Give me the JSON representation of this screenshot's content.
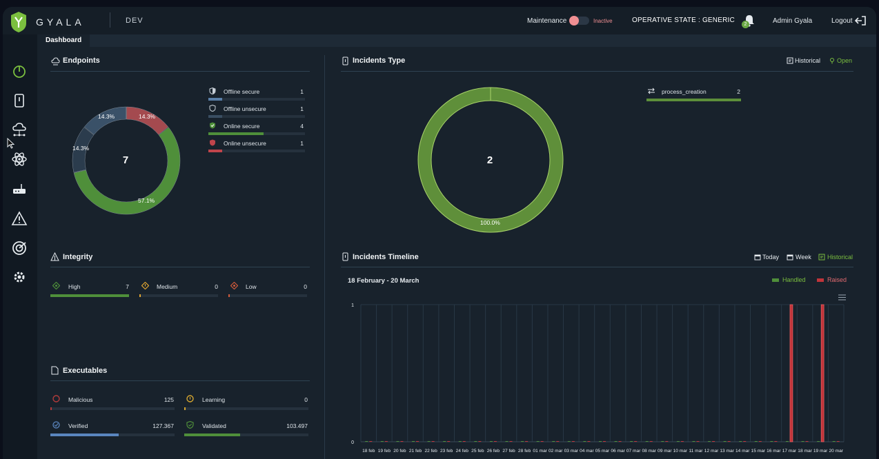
{
  "header": {
    "brand": "GYALA",
    "environment": "DEV",
    "maintenance_label": "Maintenance",
    "maintenance_state": "Inactive",
    "operative_state": "OPERATIVE STATE : GENERIC",
    "notification_count": "2",
    "user": "Admin Gyala",
    "logout_label": "Logout"
  },
  "tabs": [
    "Dashboard"
  ],
  "sidebar": {
    "items": [
      "dashboard-icon",
      "device-icon",
      "cloud-network-icon",
      "atom-icon",
      "router-icon",
      "alert-triangle-icon",
      "target-icon",
      "settings-cog-icon"
    ]
  },
  "endpoints": {
    "title": "Endpoints",
    "total": "7",
    "slices": [
      {
        "label": "Online secure",
        "pct": 57.1,
        "pct_label": "57.1%",
        "color": "#4f8f3a"
      },
      {
        "label": "Offline unsecure",
        "pct": 14.3,
        "pct_label": "14.3%",
        "color": "#2b3c4d"
      },
      {
        "label": "Offline secure",
        "pct": 14.3,
        "pct_label": "14.3%",
        "color": "#3a5168"
      },
      {
        "label": "Online unsecure",
        "pct": 14.3,
        "pct_label": "14.3%",
        "color": "#a44a4f"
      }
    ],
    "legend": [
      {
        "label": "Offline secure",
        "value": "1",
        "fill": 0.143,
        "color": "#5a7fa8"
      },
      {
        "label": "Offline unsecure",
        "value": "1",
        "fill": 0.143,
        "color": "#3a4e62"
      },
      {
        "label": "Online secure",
        "value": "4",
        "fill": 0.571,
        "color": "#4f8f3a"
      },
      {
        "label": "Online unsecure",
        "value": "1",
        "fill": 0.143,
        "color": "#c0444b"
      }
    ]
  },
  "integrity": {
    "title": "Integrity",
    "items": [
      {
        "label": "High",
        "value": "7",
        "fill": 1.0,
        "color": "#4f8f3a"
      },
      {
        "label": "Medium",
        "value": "0",
        "fill": 0.0,
        "color": "#e0a531"
      },
      {
        "label": "Low",
        "value": "0",
        "fill": 0.0,
        "color": "#d05a3a"
      }
    ]
  },
  "executables": {
    "title": "Executables",
    "items": [
      {
        "label": "Malicious",
        "value": "125",
        "fill": 0.01,
        "color": "#b33b3b"
      },
      {
        "label": "Learning",
        "value": "0",
        "fill": 0.0,
        "color": "#d4a530"
      },
      {
        "label": "Verified",
        "value": "127.367",
        "fill": 0.55,
        "color": "#5a86bf"
      },
      {
        "label": "Validated",
        "value": "103.497",
        "fill": 0.45,
        "color": "#4f8f3a"
      }
    ]
  },
  "incidents_type": {
    "title": "Incidents Type",
    "historical_label": "Historical",
    "open_label": "Open",
    "total": "2",
    "pct_label": "100.0%",
    "legend": [
      {
        "label": "process_creation",
        "value": "2",
        "fill": 1.0,
        "color": "#5d8f3a"
      }
    ]
  },
  "incidents_timeline": {
    "title": "Incidents Timeline",
    "today_label": "Today",
    "week_label": "Week",
    "historical_label": "Historical",
    "range_label": "18 February - 20 March",
    "handled_label": "Handled",
    "raised_label": "Raised"
  },
  "chart_data": {
    "type": "bar",
    "categories": [
      "18 feb",
      "19 feb",
      "20 feb",
      "21 feb",
      "22 feb",
      "23 feb",
      "24 feb",
      "25 feb",
      "26 feb",
      "27 feb",
      "28 feb",
      "01 mar",
      "02 mar",
      "03 mar",
      "04 mar",
      "05 mar",
      "06 mar",
      "07 mar",
      "08 mar",
      "09 mar",
      "10 mar",
      "11 mar",
      "12 mar",
      "13 mar",
      "14 mar",
      "15 mar",
      "16 mar",
      "17 mar",
      "18 mar",
      "19 mar",
      "20 mar"
    ],
    "series": [
      {
        "name": "Handled",
        "color": "#4f8f3a",
        "values": [
          0,
          0,
          0,
          0,
          0,
          0,
          0,
          0,
          0,
          0,
          0,
          0,
          0,
          0,
          0,
          0,
          0,
          0,
          0,
          0,
          0,
          0,
          0,
          0,
          0,
          0,
          0,
          0,
          0,
          0,
          0
        ]
      },
      {
        "name": "Raised",
        "color": "#c0343a",
        "values": [
          0,
          0,
          0,
          0,
          0,
          0,
          0,
          0,
          0,
          0,
          0,
          0,
          0,
          0,
          0,
          0,
          0,
          0,
          0,
          0,
          0,
          0,
          0,
          0,
          0,
          0,
          0,
          1,
          0,
          1,
          0
        ]
      }
    ],
    "xlabel": "",
    "ylabel": "",
    "ylim": [
      0,
      1
    ],
    "yticks": [
      "0",
      "1"
    ],
    "grid": true,
    "legend": "top-right"
  }
}
